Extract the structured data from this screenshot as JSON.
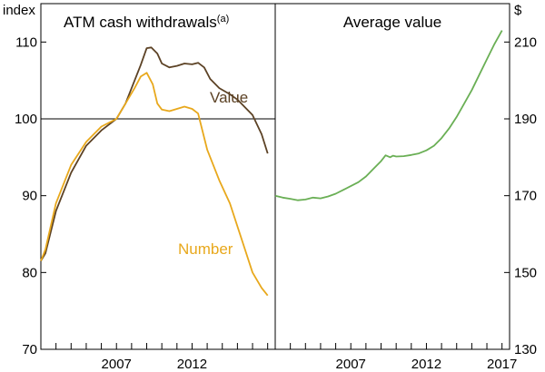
{
  "chart_data": [
    {
      "type": "line",
      "title": "ATM cash withdrawals",
      "title_superscript": "(a)",
      "axis_unit_label": "index",
      "ylim": [
        70,
        115
      ],
      "yticks": [
        70,
        80,
        90,
        100,
        110
      ],
      "reference_line": 100,
      "xlim": [
        2002.0,
        2017.5
      ],
      "x_tick_labels": [
        {
          "x": 2007,
          "label": "2007"
        },
        {
          "x": 2012,
          "label": "2012"
        }
      ],
      "series": [
        {
          "name": "Value",
          "color": "#5c4225",
          "x": [
            2002.0,
            2002.3,
            2003.0,
            2004.0,
            2005.0,
            2006.0,
            2007.0,
            2007.6,
            2008.2,
            2008.6,
            2009.0,
            2009.3,
            2009.7,
            2010.0,
            2010.5,
            2011.0,
            2011.5,
            2012.0,
            2012.4,
            2012.8,
            2013.2,
            2013.8,
            2014.5,
            2015.0,
            2015.5,
            2016.0,
            2016.6,
            2017.0
          ],
          "values": [
            81.5,
            82.5,
            88.0,
            93.0,
            96.5,
            98.5,
            100.0,
            102.0,
            105.0,
            107.0,
            109.2,
            109.3,
            108.5,
            107.2,
            106.7,
            106.9,
            107.2,
            107.1,
            107.3,
            106.7,
            105.2,
            104.0,
            103.2,
            102.5,
            101.5,
            100.5,
            98.0,
            95.5
          ]
        },
        {
          "name": "Number",
          "color": "#e8a81c",
          "x": [
            2002.0,
            2002.3,
            2003.0,
            2004.0,
            2005.0,
            2006.0,
            2007.0,
            2007.6,
            2008.2,
            2008.6,
            2009.0,
            2009.4,
            2009.7,
            2010.0,
            2010.5,
            2011.0,
            2011.5,
            2012.0,
            2012.4,
            2013.0,
            2013.8,
            2014.5,
            2015.0,
            2015.5,
            2016.0,
            2016.6,
            2017.0
          ],
          "values": [
            81.5,
            83.0,
            89.0,
            94.0,
            97.0,
            99.0,
            100.0,
            102.0,
            104.0,
            105.5,
            106.0,
            104.5,
            102.0,
            101.2,
            101.0,
            101.3,
            101.6,
            101.3,
            100.7,
            96.0,
            92.0,
            89.0,
            86.0,
            83.0,
            80.0,
            78.0,
            77.0
          ]
        }
      ]
    },
    {
      "type": "line",
      "title": "Average value",
      "axis_unit_label": "$",
      "ylim": [
        130,
        220
      ],
      "yticks": [
        130,
        150,
        170,
        190,
        210
      ],
      "xlim": [
        2002.0,
        2017.5
      ],
      "x_tick_labels": [
        {
          "x": 2007,
          "label": "2007"
        },
        {
          "x": 2012,
          "label": "2012"
        },
        {
          "x": 2017,
          "label": "2017"
        }
      ],
      "series": [
        {
          "name": "Average value",
          "color": "#6aaf55",
          "x": [
            2002.0,
            2002.5,
            2003.0,
            2003.5,
            2004.0,
            2004.5,
            2005.0,
            2005.5,
            2006.0,
            2006.5,
            2007.0,
            2007.5,
            2008.0,
            2008.5,
            2009.0,
            2009.3,
            2009.6,
            2009.8,
            2010.0,
            2010.5,
            2011.0,
            2011.5,
            2012.0,
            2012.5,
            2013.0,
            2013.5,
            2014.0,
            2014.5,
            2015.0,
            2015.5,
            2016.0,
            2016.5,
            2017.0
          ],
          "values": [
            170.0,
            169.5,
            169.2,
            168.8,
            169.0,
            169.5,
            169.3,
            169.8,
            170.5,
            171.5,
            172.5,
            173.5,
            175.0,
            177.0,
            179.0,
            180.5,
            180.0,
            180.4,
            180.2,
            180.3,
            180.6,
            181.0,
            181.8,
            183.0,
            185.0,
            187.5,
            190.5,
            194.0,
            197.5,
            201.5,
            205.5,
            209.5,
            213.0
          ]
        }
      ]
    }
  ],
  "labels": {
    "value_series": "Value",
    "number_series": "Number"
  }
}
